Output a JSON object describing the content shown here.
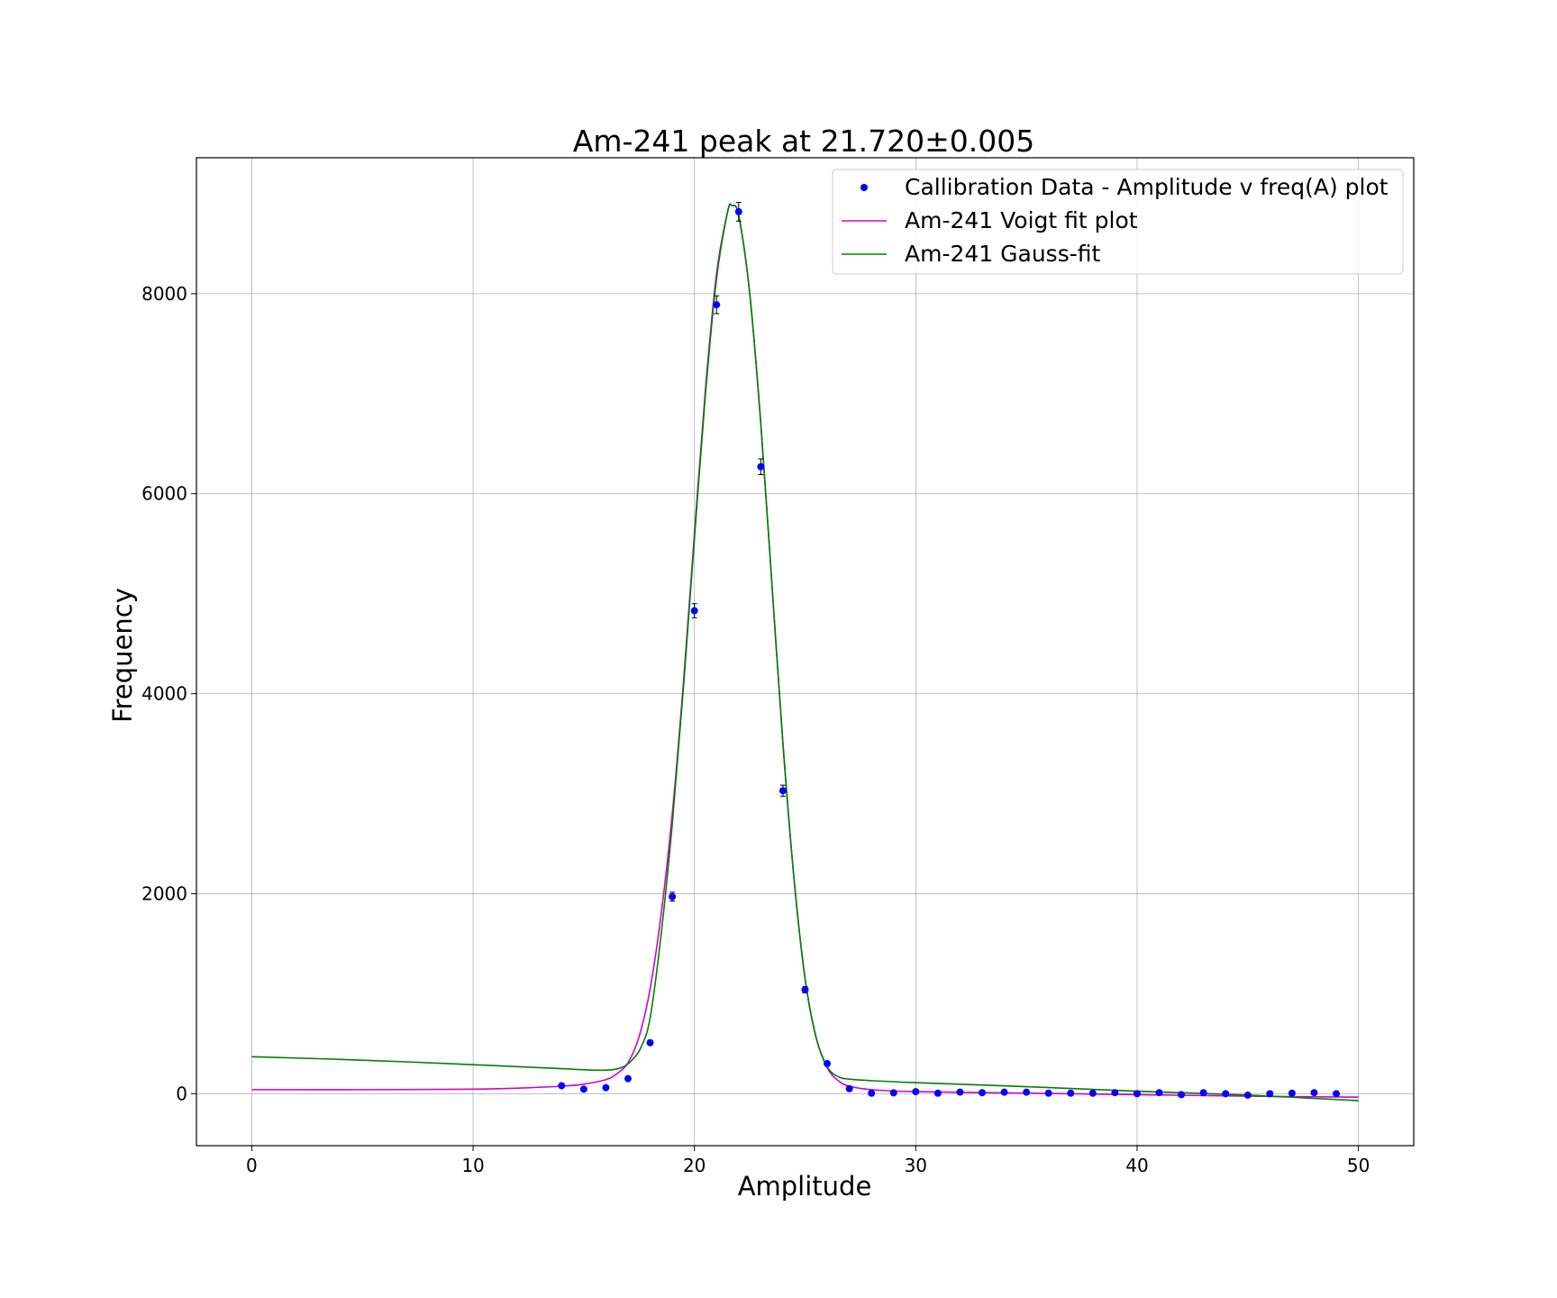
{
  "chart_data": {
    "type": "scatter",
    "title": "Am-241 peak at 21.720±0.005",
    "xlabel": "Amplitude",
    "ylabel": "Frequency",
    "xlim": [
      -2.5,
      52.5
    ],
    "ylim": [
      -520,
      9360
    ],
    "xticks": [
      0,
      10,
      20,
      30,
      40,
      50
    ],
    "xtick_labels": [
      "0",
      "10",
      "20",
      "30",
      "40",
      "50"
    ],
    "yticks": [
      0,
      2000,
      4000,
      6000,
      8000
    ],
    "ytick_labels": [
      "0",
      "2000",
      "4000",
      "6000",
      "8000"
    ],
    "grid": true,
    "legend_position": "upper-right",
    "data_series": {
      "name": "Callibration Data - Amplitude v freq(A) plot",
      "color": "#0000ff",
      "points": [
        {
          "x": 14,
          "y": 80,
          "err": 9
        },
        {
          "x": 15,
          "y": 45,
          "err": 7
        },
        {
          "x": 16,
          "y": 60,
          "err": 8
        },
        {
          "x": 17,
          "y": 150,
          "err": 12
        },
        {
          "x": 18,
          "y": 510,
          "err": 23
        },
        {
          "x": 19,
          "y": 1970,
          "err": 44
        },
        {
          "x": 20,
          "y": 4830,
          "err": 70
        },
        {
          "x": 21,
          "y": 7890,
          "err": 89
        },
        {
          "x": 22,
          "y": 8820,
          "err": 94
        },
        {
          "x": 23,
          "y": 6270,
          "err": 79
        },
        {
          "x": 24,
          "y": 3030,
          "err": 55
        },
        {
          "x": 25,
          "y": 1040,
          "err": 32
        },
        {
          "x": 26,
          "y": 300,
          "err": 17
        },
        {
          "x": 27,
          "y": 50,
          "err": 7
        },
        {
          "x": 28,
          "y": 5,
          "err": 2
        },
        {
          "x": 29,
          "y": 8,
          "err": 3
        },
        {
          "x": 30,
          "y": 20,
          "err": 4
        },
        {
          "x": 31,
          "y": 5,
          "err": 2
        },
        {
          "x": 32,
          "y": 15,
          "err": 4
        },
        {
          "x": 33,
          "y": 10,
          "err": 3
        },
        {
          "x": 34,
          "y": 15,
          "err": 4
        },
        {
          "x": 35,
          "y": 15,
          "err": 4
        },
        {
          "x": 36,
          "y": 5,
          "err": 2
        },
        {
          "x": 37,
          "y": 5,
          "err": 2
        },
        {
          "x": 38,
          "y": 5,
          "err": 2
        },
        {
          "x": 39,
          "y": 10,
          "err": 3
        },
        {
          "x": 40,
          "y": 0,
          "err": 1
        },
        {
          "x": 41,
          "y": 10,
          "err": 3
        },
        {
          "x": 42,
          "y": -10,
          "err": 3
        },
        {
          "x": 43,
          "y": 10,
          "err": 3
        },
        {
          "x": 44,
          "y": 0,
          "err": 1
        },
        {
          "x": 45,
          "y": -15,
          "err": 4
        },
        {
          "x": 46,
          "y": 0,
          "err": 1
        },
        {
          "x": 47,
          "y": 5,
          "err": 2
        },
        {
          "x": 48,
          "y": 10,
          "err": 3
        },
        {
          "x": 49,
          "y": 0,
          "err": 1
        }
      ]
    },
    "fit_series": [
      {
        "name": "Am-241 Voigt fit plot",
        "color": "#d400d4",
        "x": [
          0,
          5,
          10,
          12,
          14,
          15,
          16,
          16.5,
          17,
          17.5,
          18,
          18.5,
          19,
          19.5,
          20,
          20.5,
          21,
          21.5,
          21.7,
          22,
          22.5,
          23,
          23.5,
          24,
          24.5,
          25,
          25.5,
          26,
          26.5,
          27,
          28,
          30,
          35,
          40,
          45,
          50
        ],
        "y": [
          40,
          40,
          45,
          55,
          75,
          95,
          140,
          200,
          310,
          570,
          1050,
          1800,
          2800,
          4100,
          5600,
          7050,
          8200,
          8820,
          8880,
          8780,
          8000,
          6700,
          5100,
          3500,
          2150,
          1150,
          560,
          260,
          130,
          75,
          40,
          20,
          5,
          -10,
          -25,
          -35
        ]
      },
      {
        "name": "Am-241 Gauss-fit",
        "color": "#008000",
        "x": [
          0,
          5,
          10,
          14,
          15.5,
          16.3,
          16.8,
          17.2,
          17.6,
          18,
          18.5,
          19,
          19.5,
          20,
          20.5,
          21,
          21.5,
          21.7,
          22,
          22.5,
          23,
          23.5,
          24,
          24.5,
          25,
          25.5,
          26,
          26.5,
          27,
          28,
          30,
          35,
          40,
          45,
          50
        ],
        "y": [
          370,
          335,
          290,
          250,
          235,
          240,
          270,
          340,
          470,
          760,
          1600,
          2700,
          4050,
          5550,
          7000,
          8150,
          8820,
          8880,
          8780,
          8000,
          6700,
          5100,
          3500,
          2150,
          1150,
          560,
          270,
          170,
          145,
          130,
          110,
          70,
          25,
          -15,
          -70
        ]
      }
    ]
  }
}
